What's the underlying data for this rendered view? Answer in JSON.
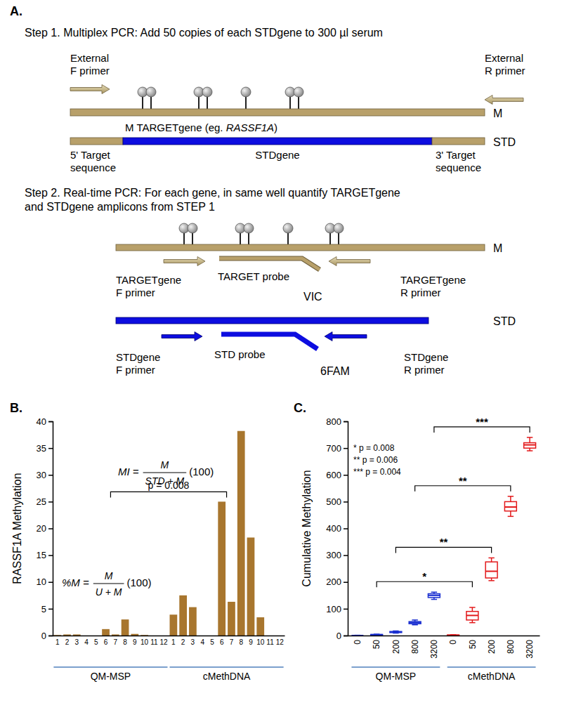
{
  "diagram": {
    "panel": "A.",
    "step1": "Step 1. Multiplex PCR: Add 50 copies of each STDgene to 300 µl serum",
    "ext_f": [
      "External",
      "F primer"
    ],
    "ext_r": [
      "External",
      "R primer"
    ],
    "m": "M",
    "std": "STD",
    "m_target": [
      "M TARGETgene (eg. ",
      "RASSF1A",
      ")"
    ],
    "five_prime": [
      "5' Target",
      "sequence"
    ],
    "stdgene": "STDgene",
    "three_prime": [
      "3' Target",
      "sequence"
    ],
    "step2": [
      "Step 2. Real-time PCR: For each gene, in same well quantify TARGETgene",
      "and STDgene amplicons from STEP 1"
    ],
    "target_f": [
      "TARGETgene",
      "F primer"
    ],
    "target_probe": "TARGET probe",
    "vic": "VIC",
    "target_r": [
      "TARGETgene",
      "R primer"
    ],
    "std_f": [
      "STDgene",
      "F primer"
    ],
    "std_probe": "STD probe",
    "fam": "6FAM",
    "std_r": [
      "STDgene",
      "R primer"
    ]
  },
  "chart_data": [
    {
      "panel": "B.",
      "type": "bar",
      "ylabel": "RASSF1A Methylation",
      "categories": [
        "1",
        "2",
        "3",
        "4",
        "5",
        "6",
        "7",
        "8",
        "9",
        "10",
        "11",
        "12"
      ],
      "series": [
        {
          "name": "QM-MSP",
          "color": "#a8762e",
          "values": [
            0.1,
            0.2,
            0.2,
            0,
            0,
            1.2,
            0.2,
            3.0,
            0.3,
            0.1,
            0,
            0
          ]
        },
        {
          "name": "cMethDNA",
          "color": "#a8762e",
          "values": [
            3.9,
            7.5,
            5.3,
            0,
            0,
            25,
            6.3,
            38.2,
            18.3,
            3.4,
            0,
            0
          ]
        }
      ],
      "ylim": [
        0,
        40
      ],
      "yticks": [
        0,
        5,
        10,
        15,
        20,
        25,
        30,
        35,
        40
      ],
      "annotations": {
        "p_value": "p = 0.008",
        "formulas": [
          {
            "lhs": "MI =",
            "numerator": "M",
            "denominator": "STD + M",
            "factor": "(100)"
          },
          {
            "lhs": "%M =",
            "numerator": "M",
            "denominator": "U + M",
            "factor": "(100)"
          }
        ]
      }
    },
    {
      "panel": "C.",
      "type": "box",
      "ylabel": "Cumulative Methylation",
      "categories": [
        "0",
        "50",
        "200",
        "800",
        "3200"
      ],
      "series": [
        {
          "name": "QM-MSP",
          "color": "#1a2fd0",
          "boxes": [
            {
              "min": 0,
              "q1": 0,
              "median": 0,
              "q3": 0,
              "max": 1
            },
            {
              "min": 1,
              "q1": 2,
              "median": 3,
              "q3": 4,
              "max": 5
            },
            {
              "min": 9,
              "q1": 11,
              "median": 13,
              "q3": 15,
              "max": 17
            },
            {
              "min": 40,
              "q1": 44,
              "median": 48,
              "q3": 52,
              "max": 58
            },
            {
              "min": 135,
              "q1": 142,
              "median": 150,
              "q3": 156,
              "max": 162
            }
          ]
        },
        {
          "name": "cMethDNA",
          "color": "#e31a1c",
          "boxes": [
            {
              "min": 0,
              "q1": 0,
              "median": 1,
              "q3": 2,
              "max": 3
            },
            {
              "min": 48,
              "q1": 58,
              "median": 75,
              "q3": 90,
              "max": 105
            },
            {
              "min": 205,
              "q1": 215,
              "median": 240,
              "q3": 275,
              "max": 290
            },
            {
              "min": 445,
              "q1": 465,
              "median": 480,
              "q3": 500,
              "max": 520
            },
            {
              "min": 690,
              "q1": 700,
              "median": 712,
              "q3": 720,
              "max": 740
            }
          ]
        }
      ],
      "ylim": [
        0,
        800
      ],
      "yticks": [
        0,
        100,
        200,
        300,
        400,
        500,
        600,
        700,
        800
      ],
      "significance": [
        {
          "label": "*",
          "category": "50"
        },
        {
          "label": "**",
          "category": "200"
        },
        {
          "label": "**",
          "category": "800"
        },
        {
          "label": "***",
          "category": "3200"
        }
      ],
      "p_values": [
        "* p = 0.008",
        "** p = 0.006",
        "*** p = 0.004"
      ]
    }
  ]
}
